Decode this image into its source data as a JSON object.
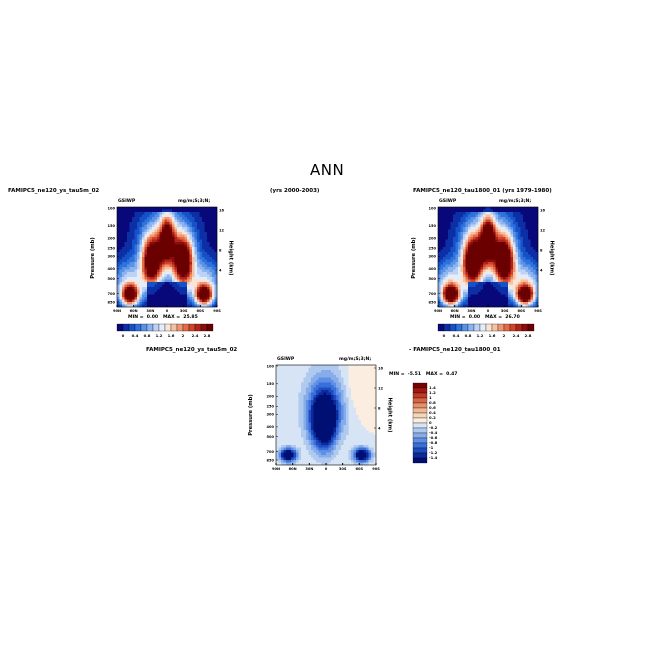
{
  "page": {
    "title": "ANN"
  },
  "header": {
    "left_case": "FAMIPC5_ne120_ys_tau5m_02",
    "center_years": "(yrs 2000-2003)",
    "right_case": "FAMIPC5_ne120_tau1800_01 (yrs 1979-1980)"
  },
  "colors": {
    "abs_scale": [
      "#08087a",
      "#0c2fa5",
      "#1652c7",
      "#2f72dc",
      "#5a93e6",
      "#8bb3ef",
      "#bcd3f6",
      "#e3edfb",
      "#fbe4d4",
      "#f6c1a2",
      "#ef9670",
      "#e56b45",
      "#d1432a",
      "#b0231a",
      "#8a0c0c",
      "#6b0000"
    ],
    "diff_scale": [
      "#000f73",
      "#0c2a9c",
      "#1d4cc0",
      "#3a6ed8",
      "#5f8ee6",
      "#86ade9",
      "#afc9ef",
      "#d6e4f5",
      "#fbeee0",
      "#f6d6b8",
      "#efb892",
      "#e4906a",
      "#d66446",
      "#c03a26",
      "#a01810",
      "#7a0000"
    ]
  },
  "chart_data": [
    {
      "id": "top-left",
      "type": "heatmap",
      "field_label": "GSIWP",
      "units": "mg/m;S;3;N;",
      "ylabel": "Pressure (mb)",
      "ylabel_right": "Height (km)",
      "x_ticks": [
        "90N",
        "60N",
        "30N",
        "0",
        "30S",
        "60S",
        "90S"
      ],
      "y_ticks": [
        "100",
        "150",
        "200",
        "250",
        "300",
        "400",
        "500",
        "700",
        "850"
      ],
      "height_ticks": [
        "16",
        "12",
        "8",
        "4"
      ],
      "stats": {
        "min_label": "MIN =",
        "min": "0.00",
        "max_label": "MAX =",
        "max": "25.85"
      },
      "colorbar_labels": [
        "0",
        "0.4",
        "0.8",
        "1.2",
        "1.6",
        "2",
        "2.4",
        "2.8"
      ]
    },
    {
      "id": "top-right",
      "type": "heatmap",
      "field_label": "GSIWP",
      "units": "mg/m;S;3;N;",
      "ylabel": "Pressure (mb)",
      "ylabel_right": "Height (km)",
      "x_ticks": [
        "90N",
        "60N",
        "30N",
        "0",
        "30S",
        "60S",
        "90S"
      ],
      "y_ticks": [
        "100",
        "150",
        "200",
        "250",
        "300",
        "400",
        "500",
        "700",
        "850"
      ],
      "height_ticks": [
        "16",
        "12",
        "8",
        "4"
      ],
      "stats": {
        "min_label": "MIN =",
        "min": "0.00",
        "max_label": "MAX =",
        "max": "26.70"
      },
      "colorbar_labels": [
        "0",
        "0.4",
        "0.8",
        "1.2",
        "1.6",
        "2",
        "2.4",
        "2.8"
      ]
    },
    {
      "id": "difference",
      "type": "heatmap",
      "left_case": "FAMIPC5_ne120_ys_tau5m_02",
      "right_case": "- FAMIPC5_ne120_tau1800_01",
      "field_label": "GSIWP",
      "units": "mg/m;S;3;N;",
      "ylabel": "Pressure (mb)",
      "ylabel_right": "Height (km)",
      "x_ticks": [
        "90N",
        "60N",
        "30N",
        "0",
        "30S",
        "60S",
        "90S"
      ],
      "y_ticks": [
        "100",
        "150",
        "200",
        "250",
        "300",
        "400",
        "500",
        "700",
        "850"
      ],
      "height_ticks": [
        "16",
        "12",
        "8",
        "4"
      ],
      "stats": {
        "min_label": "MIN =",
        "min": "-5.51",
        "max_label": "MAX =",
        "max": "0.47"
      },
      "colorbar_labels": [
        "1.4",
        "1.2",
        "1",
        "0.8",
        "0.6",
        "0.4",
        "0.2",
        "0",
        "-0.2",
        "-0.4",
        "-0.6",
        "-0.8",
        "-1",
        "-1.2",
        "-1.4"
      ]
    }
  ]
}
